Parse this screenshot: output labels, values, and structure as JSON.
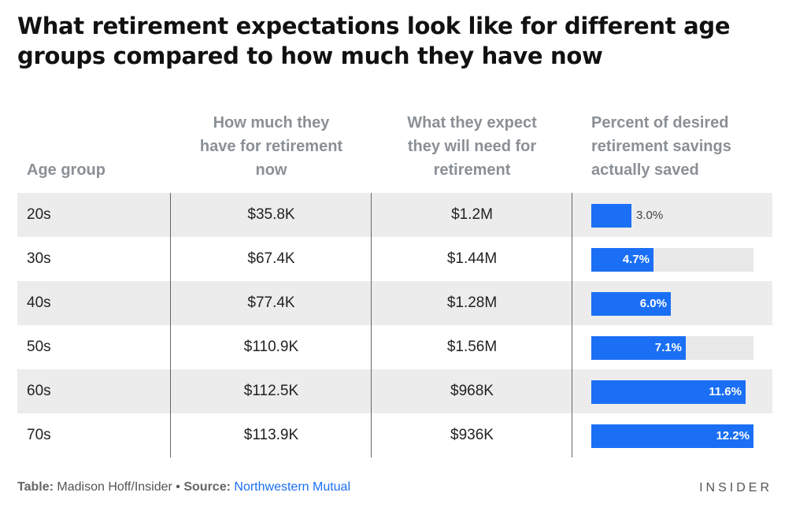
{
  "title": "What retirement expectations look like for different age groups compared to how much they have now",
  "headers": {
    "age": "Age group",
    "have": [
      "How much they",
      "have for retirement",
      "now"
    ],
    "need": [
      "What they expect",
      "they will need for",
      "retirement"
    ],
    "pct": [
      "Percent of desired",
      "retirement savings",
      "actually saved"
    ]
  },
  "chart_data": {
    "type": "table",
    "columns": [
      "Age group",
      "How much they have for retirement now",
      "What they expect they will need for retirement",
      "Percent of desired retirement savings actually saved"
    ],
    "rows": [
      {
        "age": "20s",
        "have": "$35.8K",
        "need": "$1.2M",
        "pct": 3.0,
        "pct_label": "3.0%"
      },
      {
        "age": "30s",
        "have": "$67.4K",
        "need": "$1.44M",
        "pct": 4.7,
        "pct_label": "4.7%"
      },
      {
        "age": "40s",
        "have": "$77.4K",
        "need": "$1.28M",
        "pct": 6.0,
        "pct_label": "6.0%"
      },
      {
        "age": "50s",
        "have": "$110.9K",
        "need": "$1.56M",
        "pct": 7.1,
        "pct_label": "7.1%"
      },
      {
        "age": "60s",
        "have": "$112.5K",
        "need": "$968K",
        "pct": 11.6,
        "pct_label": "11.6%"
      },
      {
        "age": "70s",
        "have": "$113.9K",
        "need": "$936K",
        "pct": 12.2,
        "pct_label": "12.2%"
      }
    ],
    "bar_max": 12.2
  },
  "footer": {
    "table_label": "Table:",
    "table_author": "Madison Hoff/Insider",
    "separator": "•",
    "source_label": "Source:",
    "source_name": "Northwestern Mutual"
  },
  "logo": "INSIDER",
  "colors": {
    "bar": "#1a6ff5",
    "row_shade": "#ececec",
    "track": "#e8e8e8"
  }
}
